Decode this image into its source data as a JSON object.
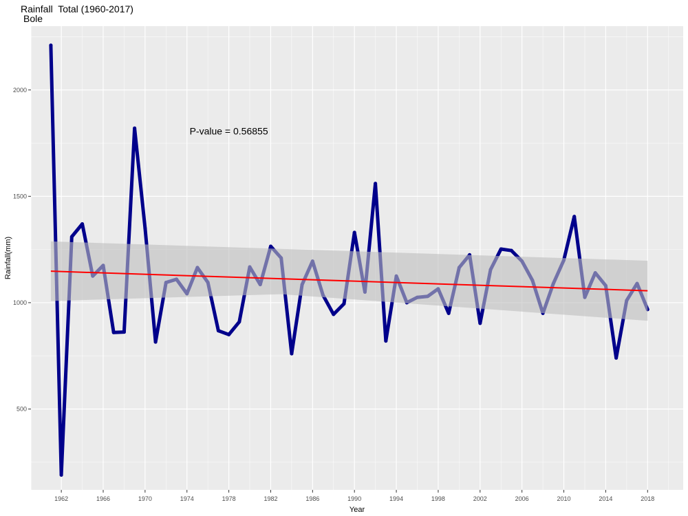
{
  "chart_data": {
    "type": "line",
    "title": "Rainfall  Total (1960-2017)",
    "subtitle": "Bole",
    "xlabel": "Year",
    "ylabel": "Rainfall(mm)",
    "xlim": [
      1959.1,
      2021.4
    ],
    "ylim": [
      120,
      2300
    ],
    "x_ticks": [
      1962,
      1966,
      1970,
      1974,
      1978,
      1982,
      1986,
      1990,
      1994,
      1998,
      2002,
      2006,
      2010,
      2014,
      2018
    ],
    "y_ticks": [
      500,
      1000,
      1500,
      2000
    ],
    "annotation": "P-value = 0.56855",
    "annotation_position": {
      "x": 1978,
      "y": 1790
    },
    "grid": true,
    "legend": "none",
    "series": [
      {
        "type": "line",
        "color": "#00008b",
        "x": [
          1961,
          1962,
          1963,
          1964,
          1965,
          1966,
          1967,
          1968,
          1969,
          1970,
          1971,
          1972,
          1973,
          1974,
          1975,
          1976,
          1977,
          1978,
          1979,
          1980,
          1981,
          1982,
          1983,
          1984,
          1985,
          1986,
          1987,
          1988,
          1989,
          1990,
          1991,
          1992,
          1993,
          1994,
          1995,
          1996,
          1997,
          1998,
          1999,
          2000,
          2001,
          2002,
          2003,
          2004,
          2005,
          2006,
          2007,
          2008,
          2009,
          2010,
          2011,
          2012,
          2013,
          2014,
          2015,
          2016,
          2017,
          2018
        ],
        "values": [
          2210,
          190,
          1310,
          1370,
          1125,
          1175,
          860,
          862,
          1820,
          1350,
          815,
          1095,
          1110,
          1042,
          1165,
          1095,
          868,
          850,
          910,
          1168,
          1085,
          1265,
          1210,
          760,
          1085,
          1195,
          1035,
          945,
          995,
          1330,
          1050,
          1560,
          820,
          1125,
          1000,
          1025,
          1030,
          1065,
          950,
          1165,
          1225,
          903,
          1155,
          1252,
          1245,
          1195,
          1105,
          950,
          1090,
          1200,
          1405,
          1025,
          1140,
          1080,
          740,
          1010,
          1090,
          968
        ]
      },
      {
        "type": "trend",
        "color": "#ff0000",
        "x": [
          1961,
          2018
        ],
        "values": [
          1148,
          1056
        ],
        "ci_lower": [
          1008,
          915
        ],
        "ci_mid": [
          1040,
          1040
        ],
        "ci_upper": [
          1288,
          1197
        ],
        "ci_mid_x": 1983,
        "ci_color": "#bebebe"
      }
    ],
    "colors": {
      "panel_background": "#ebebeb",
      "grid_major": "#ffffff",
      "tick_label": "#4d4d4d"
    }
  }
}
